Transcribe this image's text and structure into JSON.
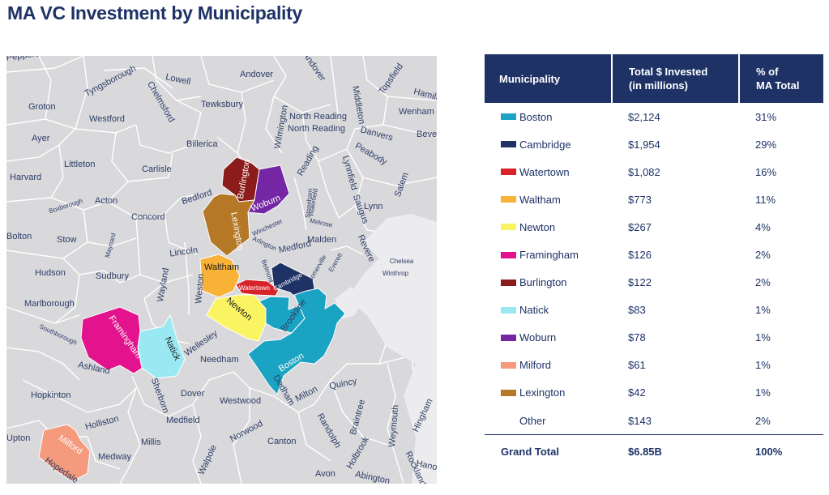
{
  "title": "MA VC Investment by Municipality",
  "table": {
    "headers": {
      "municipality": "Municipality",
      "invested_line1": "Total $ Invested",
      "invested_line2": "(in millions)",
      "pct_line1": "% of",
      "pct_line2": "MA Total"
    },
    "rows": [
      {
        "name": "Boston",
        "value": "$2,124",
        "pct": "31%",
        "color": "#1aa3c2"
      },
      {
        "name": "Cambridge",
        "value": "$1,954",
        "pct": "29%",
        "color": "#1e3266"
      },
      {
        "name": "Watertown",
        "value": "$1,082",
        "pct": "16%",
        "color": "#d8232a"
      },
      {
        "name": "Waltham",
        "value": "$773",
        "pct": "11%",
        "color": "#f8b237"
      },
      {
        "name": "Newton",
        "value": "$267",
        "pct": "4%",
        "color": "#fbf462"
      },
      {
        "name": "Framingham",
        "value": "$126",
        "pct": "2%",
        "color": "#e3128d"
      },
      {
        "name": "Burlington",
        "value": "$122",
        "pct": "2%",
        "color": "#8c1c1c"
      },
      {
        "name": "Natick",
        "value": "$83",
        "pct": "1%",
        "color": "#9ae9f2"
      },
      {
        "name": "Woburn",
        "value": "$78",
        "pct": "1%",
        "color": "#7426a5"
      },
      {
        "name": "Milford",
        "value": "$61",
        "pct": "1%",
        "color": "#f59a7d"
      },
      {
        "name": "Lexington",
        "value": "$42",
        "pct": "1%",
        "color": "#b47826"
      },
      {
        "name": "Other",
        "value": "$143",
        "pct": "2%",
        "color": ""
      }
    ],
    "total": {
      "name": "Grand Total",
      "value": "$6.85B",
      "pct": "100%"
    }
  },
  "map": {
    "town_labels": [
      "Pepperell",
      "Tyngsborough",
      "Lowell",
      "Andover",
      "Andover",
      "Middleton",
      "Topsfield",
      "Hamilton",
      "Groton",
      "Westford",
      "Chelmsford",
      "Tewksbury",
      "North Reading",
      "Wenham",
      "Beverly",
      "Ayer",
      "Billerica",
      "Wilmington",
      "Danvers",
      "Littleton",
      "Carlisle",
      "Reading",
      "Lynnfield",
      "Peabody",
      "Harvard",
      "Bedford",
      "Salem",
      "Boxborough",
      "Acton",
      "Stoneham",
      "Wakefield",
      "Saugus",
      "Lynn",
      "Concord",
      "Winchester",
      "Melrose",
      "Bolton",
      "Stow",
      "Maynard",
      "Lincoln",
      "Arlington",
      "Malden",
      "Medford",
      "Revere",
      "Chelsea",
      "Winthrop",
      "Hudson",
      "Sudbury",
      "Belmont",
      "Everett",
      "Somerville",
      "Wayland",
      "Weston",
      "Marlborough",
      "Southborough",
      "Wellesley",
      "Brookline",
      "Hopkinton",
      "Ashland",
      "Needham",
      "Sherborn",
      "Dover",
      "Dedham",
      "Milton",
      "Quincy",
      "Westwood",
      "Holliston",
      "Medfield",
      "Norwood",
      "Randolph",
      "Braintree",
      "Weymouth",
      "Hingham",
      "Upton",
      "Millis",
      "Canton",
      "Holbrook",
      "Rockland",
      "Hanover",
      "Medway",
      "Walpole",
      "Avon",
      "Abington",
      "Hopedale"
    ],
    "highlighted": [
      "Burlington",
      "Woburn",
      "Lexington",
      "Waltham",
      "Cambridge",
      "Watertown",
      "Newton",
      "Brookline",
      "Boston",
      "Framingham",
      "Natick",
      "Milford"
    ]
  }
}
